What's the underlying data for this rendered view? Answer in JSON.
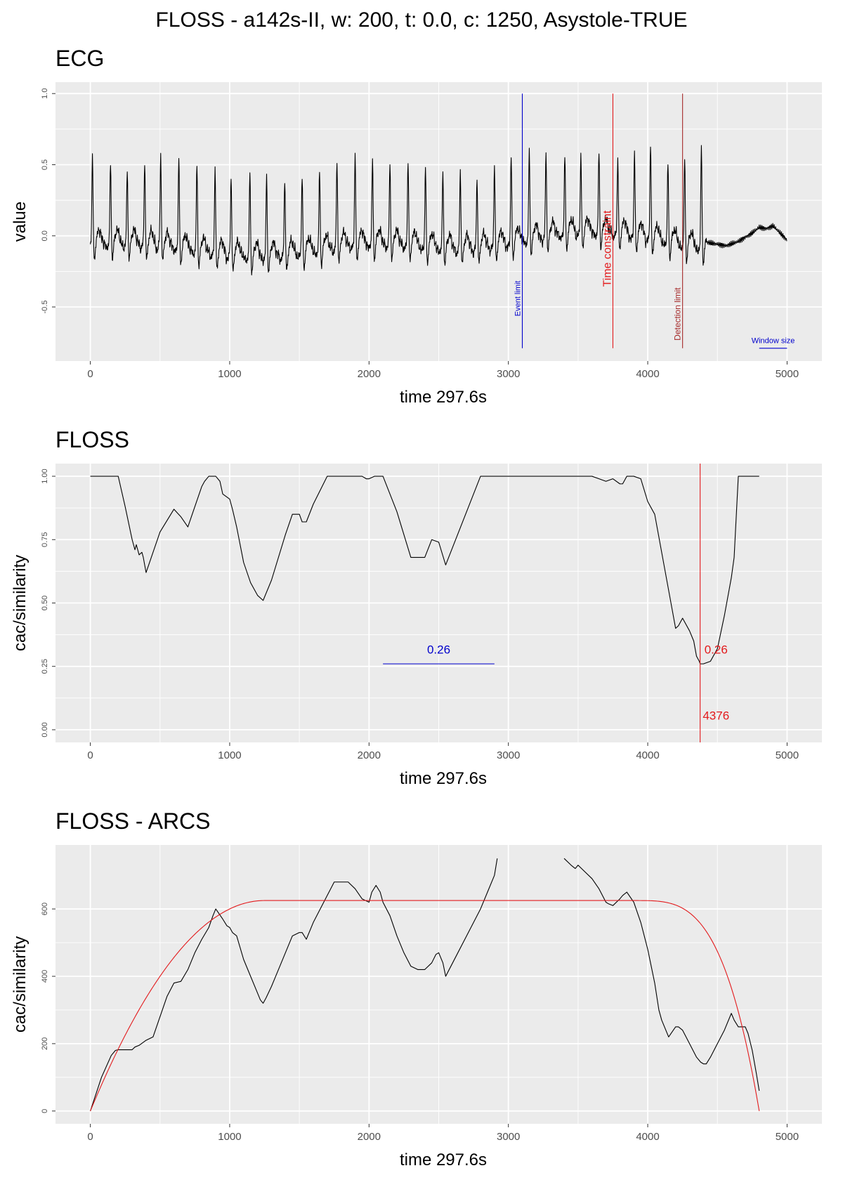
{
  "title": "FLOSS - a142s-II, w: 200, t: 0.0, c: 1250, Asystole-TRUE",
  "colors": {
    "panel": "#ebebeb",
    "grid": "#ffffff",
    "line": "#000000",
    "blue": "#0000cc",
    "red": "#e31a1c",
    "darkred": "#a52a2a"
  },
  "chart_data": [
    {
      "type": "line",
      "title": "ECG",
      "xlabel": "time 297.6s",
      "ylabel": "value",
      "xlim": [
        -250,
        5250
      ],
      "ylim": [
        -0.88,
        1.08
      ],
      "xticks": [
        0,
        1000,
        2000,
        3000,
        4000,
        5000
      ],
      "yticks": [
        -0.5,
        0.0,
        0.5,
        1.0
      ],
      "ytick_labels": [
        "-0.5",
        "0.0",
        "0.5",
        "1.0"
      ],
      "series": [
        {
          "signal": "ecg",
          "beats": [
            15,
            145,
            265,
            390,
            505,
            635,
            765,
            895,
            1010,
            1145,
            1265,
            1395,
            1520,
            1645,
            1770,
            1900,
            2025,
            2150,
            2280,
            2405,
            2530,
            2655,
            2775,
            2900,
            3020,
            3150,
            3270,
            3405,
            3520,
            3650,
            3785,
            3905,
            4020,
            4145,
            4265,
            4385
          ],
          "peaks": [
            0.57,
            0.51,
            0.46,
            0.53,
            0.59,
            0.58,
            0.55,
            0.55,
            0.51,
            0.53,
            0.51,
            0.48,
            0.48,
            0.5,
            0.55,
            0.58,
            0.53,
            0.51,
            0.54,
            0.5,
            0.47,
            0.5,
            0.44,
            0.51,
            0.56,
            0.57,
            0.53,
            0.5,
            0.49,
            0.51,
            0.47,
            0.53,
            0.61,
            0.5,
            0.55,
            0.65
          ],
          "tail": {
            "x": [
              4450,
              4560,
              4650,
              4700,
              4750,
              4800,
              4850,
              4900,
              4950,
              5000
            ],
            "y": [
              -0.05,
              -0.07,
              -0.04,
              -0.01,
              0.02,
              0.06,
              0.05,
              0.07,
              0.02,
              -0.03
            ]
          }
        }
      ],
      "annotations": [
        {
          "type": "vline",
          "x": 3100,
          "y0": -0.79,
          "y1": 1.0,
          "color": "#0000cc",
          "label": "Event limit",
          "label_x": 3085,
          "label_y": -0.44,
          "label_size": 11,
          "rotate": -90
        },
        {
          "type": "vline",
          "x": 3750,
          "y0": -0.79,
          "y1": 1.0,
          "color": "#e31a1c",
          "label": "Time constraint",
          "label_x": 3735,
          "label_y": -0.09,
          "label_size": 16,
          "rotate": -90
        },
        {
          "type": "vline",
          "x": 4250,
          "y0": -0.79,
          "y1": 1.0,
          "color": "#a52a2a",
          "label": "Detection limit",
          "label_x": 4235,
          "label_y": -0.55,
          "label_size": 12,
          "rotate": -90
        },
        {
          "type": "segment",
          "x0": 4800,
          "x1": 5000,
          "y": -0.79,
          "color": "#0000cc",
          "label": "Window size",
          "label_x": 4900,
          "label_y": -0.755,
          "label_size": 11
        }
      ]
    },
    {
      "type": "line",
      "title": "FLOSS",
      "xlabel": "time 297.6s",
      "ylabel": "cac/similarity",
      "xlim": [
        -250,
        5250
      ],
      "ylim": [
        -0.05,
        1.05
      ],
      "xticks": [
        0,
        1000,
        2000,
        3000,
        4000,
        5000
      ],
      "yticks": [
        0.0,
        0.25,
        0.5,
        0.75,
        1.0
      ],
      "ytick_labels": [
        "0.00",
        "0.25",
        "0.50",
        "0.75",
        "1.00"
      ],
      "series": [
        {
          "x": [
            0,
            200,
            250,
            300,
            320,
            330,
            350,
            370,
            380,
            400,
            500,
            600,
            650,
            700,
            800,
            820,
            850,
            900,
            930,
            950,
            1000,
            1020,
            1050,
            1100,
            1150,
            1200,
            1240,
            1300,
            1400,
            1450,
            1500,
            1520,
            1550,
            1600,
            1700,
            1950,
            1980,
            2000,
            2040,
            2100,
            2200,
            2250,
            2300,
            2380,
            2400,
            2450,
            2500,
            2550,
            2800,
            3600,
            3650,
            3700,
            3750,
            3800,
            3820,
            3850,
            3900,
            3950,
            4000,
            4050,
            4100,
            4150,
            4200,
            4220,
            4250,
            4300,
            4330,
            4350,
            4370,
            4376,
            4400,
            4450,
            4500,
            4550,
            4600,
            4620,
            4650,
            4800
          ],
          "y": [
            1.0,
            1.0,
            0.88,
            0.75,
            0.71,
            0.73,
            0.69,
            0.7,
            0.68,
            0.62,
            0.78,
            0.87,
            0.84,
            0.8,
            0.96,
            0.98,
            1.0,
            1.0,
            0.98,
            0.93,
            0.91,
            0.87,
            0.8,
            0.66,
            0.58,
            0.53,
            0.51,
            0.59,
            0.77,
            0.85,
            0.85,
            0.82,
            0.82,
            0.89,
            1.0,
            1.0,
            0.99,
            0.99,
            1.0,
            1.0,
            0.86,
            0.77,
            0.68,
            0.68,
            0.68,
            0.75,
            0.74,
            0.65,
            1.0,
            1.0,
            0.99,
            0.98,
            0.99,
            0.97,
            0.97,
            1.0,
            1.0,
            0.99,
            0.9,
            0.85,
            0.7,
            0.55,
            0.4,
            0.41,
            0.44,
            0.39,
            0.35,
            0.29,
            0.27,
            0.26,
            0.26,
            0.27,
            0.32,
            0.45,
            0.6,
            0.68,
            1.0,
            1.0
          ]
        }
      ],
      "annotations": [
        {
          "type": "segment",
          "x0": 2100,
          "x1": 2900,
          "y": 0.26,
          "color": "#0000cc",
          "label": "0.26",
          "label_x": 2500,
          "label_y": 0.3,
          "label_size": 17
        },
        {
          "type": "vline",
          "x": 4376,
          "y0": -0.05,
          "y1": 1.05,
          "color": "#e31a1c"
        },
        {
          "type": "text",
          "label": "0.26",
          "x": 4490,
          "y": 0.3,
          "color": "#e31a1c",
          "label_size": 17
        },
        {
          "type": "text",
          "label": "4376",
          "x": 4490,
          "y": 0.04,
          "color": "#e31a1c",
          "label_size": 17
        }
      ]
    },
    {
      "type": "line",
      "title": "FLOSS - ARCS",
      "xlabel": "time 297.6s",
      "ylabel": "cac/similarity",
      "xlim": [
        -250,
        5250
      ],
      "ylim": [
        -38,
        790
      ],
      "xticks": [
        0,
        1000,
        2000,
        3000,
        4000,
        5000
      ],
      "yticks": [
        0,
        200,
        400,
        600
      ],
      "ytick_labels": [
        "0",
        "200",
        "400",
        "600"
      ],
      "series": [
        {
          "x": [
            0,
            80,
            150,
            180,
            200,
            250,
            300,
            320,
            350,
            400,
            450,
            500,
            550,
            600,
            650,
            700,
            750,
            800,
            850,
            880,
            900,
            950,
            980,
            1000,
            1020,
            1050,
            1100,
            1150,
            1200,
            1220,
            1240,
            1260,
            1300,
            1350,
            1400,
            1450,
            1500,
            1520,
            1550,
            1600,
            1700,
            1750,
            1800,
            1850,
            1900,
            1950,
            2000,
            2020,
            2050,
            2080,
            2100,
            2150,
            2200,
            2250,
            2300,
            2350,
            2400,
            2450,
            2480,
            2500,
            2530,
            2550,
            2600,
            2700,
            2800,
            2850,
            2900,
            2920
          ],
          "y": [
            0,
            100,
            165,
            180,
            182,
            182,
            182,
            190,
            195,
            210,
            220,
            280,
            340,
            380,
            385,
            420,
            470,
            510,
            545,
            580,
            600,
            570,
            550,
            545,
            530,
            520,
            450,
            400,
            350,
            330,
            320,
            335,
            370,
            420,
            470,
            520,
            530,
            530,
            510,
            560,
            640,
            680,
            680,
            680,
            660,
            630,
            620,
            650,
            670,
            650,
            620,
            580,
            520,
            470,
            430,
            420,
            420,
            440,
            465,
            470,
            440,
            400,
            440,
            520,
            600,
            650,
            700,
            750
          ]
        },
        {
          "x": [
            3400,
            3450,
            3480,
            3500,
            3550,
            3600,
            3650,
            3700,
            3720,
            3750,
            3800,
            3820,
            3850,
            3900,
            3950,
            4000,
            4050,
            4080,
            4100,
            4150,
            4200,
            4220,
            4250,
            4300,
            4350,
            4380,
            4400,
            4420,
            4450,
            4500,
            4550,
            4600,
            4620,
            4650,
            4700,
            4720,
            4750,
            4780,
            4800
          ],
          "y": [
            750,
            730,
            720,
            730,
            710,
            690,
            660,
            620,
            615,
            610,
            630,
            640,
            650,
            620,
            560,
            480,
            380,
            300,
            270,
            220,
            250,
            250,
            240,
            200,
            160,
            145,
            140,
            140,
            160,
            200,
            240,
            290,
            270,
            250,
            250,
            230,
            180,
            110,
            60
          ]
        },
        {
          "name": "",
          "color": "#e31a1c",
          "arc": {
            "x0": 0,
            "x1": 4800,
            "peak": 625,
            "rise_end": 1250,
            "fall_start": 3900,
            "fall_power": 3.5
          }
        }
      ],
      "annotations": []
    }
  ]
}
